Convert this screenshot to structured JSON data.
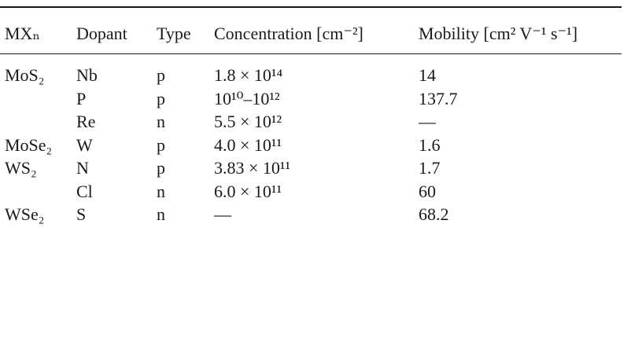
{
  "table": {
    "header": [
      "MXₙ",
      "Dopant",
      "Type",
      "Concentration [cm⁻²]",
      "Mobility [cm² V⁻¹ s⁻¹]"
    ],
    "rows": [
      [
        "MoS₂",
        "Nb",
        "p",
        "1.8 × 10¹⁴",
        "14"
      ],
      [
        null,
        "P",
        "p",
        "10¹⁰–10¹²",
        "137.7"
      ],
      [
        null,
        "Re",
        "n",
        "5.5 × 10¹²",
        "—"
      ],
      [
        "MoSe₂",
        "W",
        "p",
        "4.0 × 10¹¹",
        "1.6"
      ],
      [
        "WS₂",
        "N",
        "p",
        "3.83 × 10¹¹",
        "1.7"
      ],
      [
        null,
        "Cl",
        "n",
        "6.0 × 10¹¹",
        "60"
      ],
      [
        "WSe₂",
        "S",
        "n",
        "—",
        "68.2"
      ]
    ]
  }
}
